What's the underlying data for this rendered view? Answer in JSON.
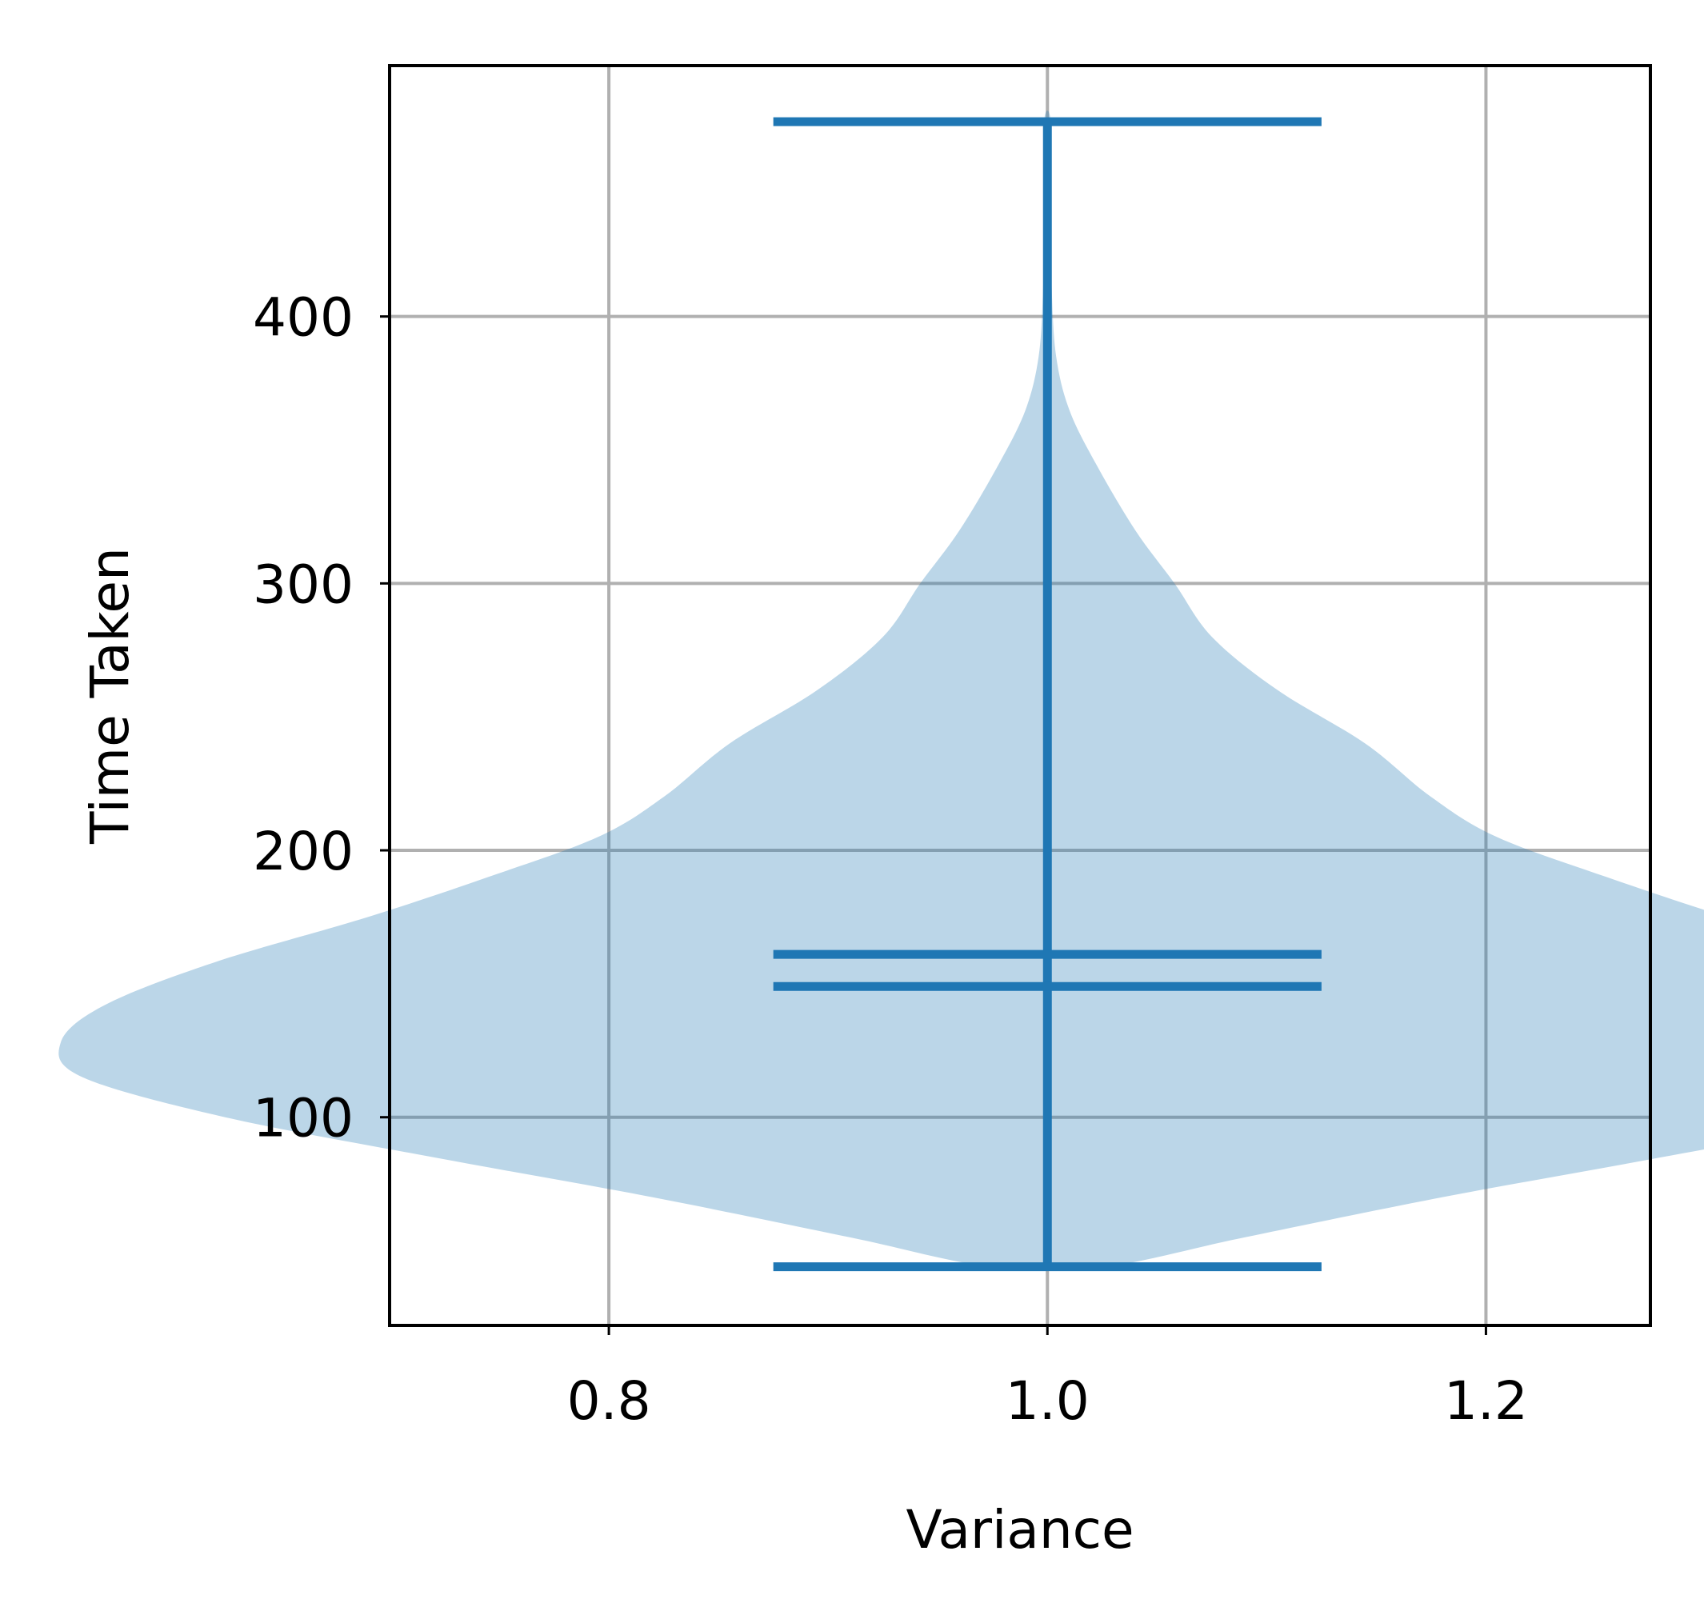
{
  "chart_data": {
    "type": "violin",
    "title": "",
    "xlabel": "Variance",
    "ylabel": "Time Taken",
    "xlim": [
      0.7,
      1.275
    ],
    "ylim": [
      22,
      494
    ],
    "xticks": [
      0.8,
      1.0,
      1.2
    ],
    "xtick_labels": [
      "0.8",
      "1.0",
      "1.2"
    ],
    "yticks": [
      100,
      200,
      300,
      400
    ],
    "ytick_labels": [
      "100",
      "200",
      "300",
      "400"
    ],
    "grid": true,
    "violin": {
      "position": 1.0,
      "min": 44,
      "max": 473,
      "mean": 161,
      "median": 149,
      "cap_half_width": 0.125,
      "density_profile": [
        {
          "y": 44,
          "half_width": 0.026
        },
        {
          "y": 55,
          "half_width": 0.09
        },
        {
          "y": 70,
          "half_width": 0.18
        },
        {
          "y": 85,
          "half_width": 0.28
        },
        {
          "y": 100,
          "half_width": 0.375
        },
        {
          "y": 115,
          "half_width": 0.44
        },
        {
          "y": 128,
          "half_width": 0.45
        },
        {
          "y": 142,
          "half_width": 0.43
        },
        {
          "y": 158,
          "half_width": 0.38
        },
        {
          "y": 175,
          "half_width": 0.31
        },
        {
          "y": 190,
          "half_width": 0.255
        },
        {
          "y": 205,
          "half_width": 0.205
        },
        {
          "y": 220,
          "half_width": 0.175
        },
        {
          "y": 240,
          "half_width": 0.145
        },
        {
          "y": 260,
          "half_width": 0.105
        },
        {
          "y": 280,
          "half_width": 0.075
        },
        {
          "y": 300,
          "half_width": 0.058
        },
        {
          "y": 320,
          "half_width": 0.04
        },
        {
          "y": 345,
          "half_width": 0.022
        },
        {
          "y": 365,
          "half_width": 0.01
        },
        {
          "y": 385,
          "half_width": 0.004
        },
        {
          "y": 410,
          "half_width": 0.002
        },
        {
          "y": 440,
          "half_width": 0.0015
        },
        {
          "y": 473,
          "half_width": 0.0015
        }
      ],
      "fill_color": "#1f77b4",
      "fill_opacity": 0.3,
      "line_color": "#1f77b4"
    },
    "colors": {
      "grid": "#b0b0b0",
      "axes": "#000000"
    }
  }
}
